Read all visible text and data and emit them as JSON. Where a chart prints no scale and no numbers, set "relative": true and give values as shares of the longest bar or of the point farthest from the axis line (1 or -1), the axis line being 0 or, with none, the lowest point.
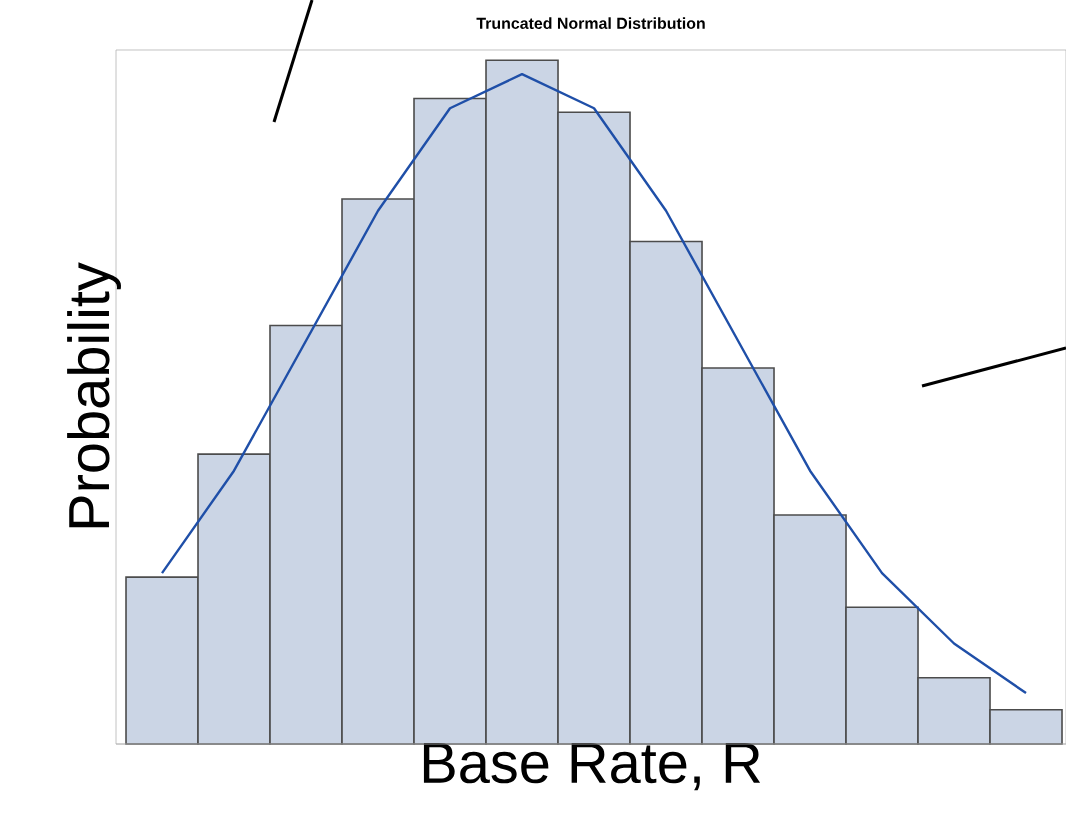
{
  "chart_data": [
    {
      "type": "bar",
      "title": "Truncated Normal Distribution",
      "xlabel": "Base Rate, R",
      "ylabel": "Probability",
      "relative": true,
      "categories": [
        null,
        null,
        null,
        null,
        null,
        null,
        null,
        null,
        null,
        null,
        null,
        null,
        null
      ],
      "series": [
        {
          "color": "#cbd5e5",
          "values": [
            0.244,
            0.424,
            0.612,
            0.797,
            0.944,
            1,
            0.924,
            0.735,
            0.55,
            0.335,
            0.2,
            0.097,
            0.05
          ]
        }
      ]
    },
    {
      "type": "line",
      "relative": true,
      "categories": [
        null,
        null,
        null,
        null,
        null,
        null,
        null,
        null,
        null,
        null,
        null,
        null,
        null
      ],
      "series": [
        {
          "color": "#1f4fa8",
          "values": [
            0.255,
            0.408,
            0.602,
            0.796,
            0.949,
            1,
            0.949,
            0.796,
            0.602,
            0.408,
            0.255,
            0.15,
            0.076
          ]
        }
      ]
    }
  ]
}
